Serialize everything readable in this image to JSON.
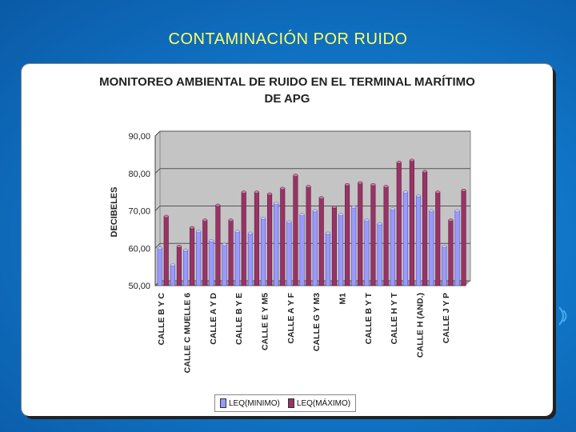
{
  "slide": {
    "title": "CONTAMINACIÓN POR RUIDO"
  },
  "colors": {
    "min": "#9999ff",
    "max": "#993366",
    "title": "#ffff66"
  },
  "chart_data": {
    "type": "bar",
    "title": "MONITOREO AMBIENTAL DE RUIDO EN EL TERMINAL MARÍTIMO DE APG",
    "title_lines": [
      "MONITOREO AMBIENTAL DE RUIDO EN EL TERMINAL MARÍTIMO",
      "DE APG"
    ],
    "xlabel": "",
    "ylabel": "DECIBELES",
    "ylim": [
      50,
      90
    ],
    "yticks": [
      50,
      60,
      70,
      80,
      90
    ],
    "ytick_labels": [
      "50,00",
      "60,00",
      "70,00",
      "80,00",
      "90,00"
    ],
    "grid": true,
    "category_labels": [
      "CALLE B Y C",
      "CALLE C MUELLE 6",
      "CALLE A Y D",
      "CALLE B Y E",
      "CALLE E Y M5",
      "CALLE A Y F",
      "CALLE G Y M3",
      "M1",
      "CALLE B Y T",
      "CALLE H Y T",
      "CALLE H (AND.)",
      "CALLE J Y P"
    ],
    "categories": [
      "c1",
      "c2",
      "c3",
      "c4",
      "c5",
      "c6",
      "c7",
      "c8",
      "c9",
      "c10",
      "c11",
      "c12",
      "c13",
      "c14",
      "c15",
      "c16",
      "c17",
      "c18",
      "c19",
      "c20",
      "c21",
      "c22",
      "c23",
      "c24"
    ],
    "series": [
      {
        "name": "LEQ(MINIMO)",
        "values": [
          60,
          55.5,
          59.5,
          64.5,
          62,
          61,
          64.5,
          64,
          68,
          72,
          67,
          69,
          70,
          64,
          69,
          71,
          67.5,
          66.5,
          70.5,
          75,
          74,
          70,
          60.5,
          70
        ]
      },
      {
        "name": "LEQ(MÁXIMO)",
        "values": [
          68.5,
          60.5,
          65.5,
          67.5,
          71.5,
          67.5,
          75,
          75,
          74.5,
          76,
          79.5,
          76.5,
          73.5,
          71,
          77,
          77.5,
          77,
          76.5,
          83,
          83.5,
          80.5,
          75,
          67.5,
          75.5
        ]
      }
    ],
    "legend": [
      "LEQ(MINIMO)",
      "LEQ(MÁXIMO)"
    ]
  }
}
